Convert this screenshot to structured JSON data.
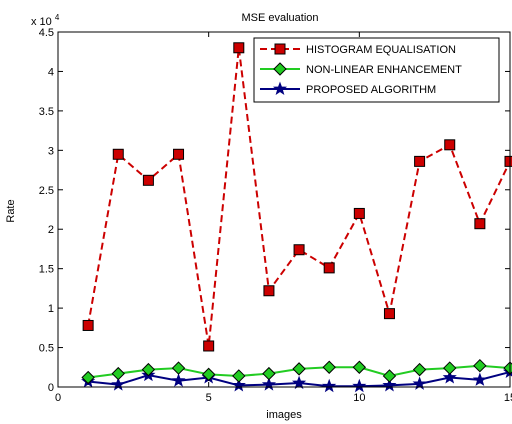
{
  "chart_data": {
    "type": "line",
    "title": "MSE evaluation",
    "xlabel": "images",
    "ylabel": "Rate",
    "y_multiplier_label": "x 10",
    "y_multiplier_exp": "4",
    "xlim": [
      0,
      15
    ],
    "ylim": [
      0,
      45000
    ],
    "x_ticks": [
      0,
      5,
      10,
      15
    ],
    "x_tick_labels": [
      "0",
      "5",
      "10",
      "15"
    ],
    "y_ticks": [
      0,
      5000,
      10000,
      15000,
      20000,
      25000,
      30000,
      35000,
      40000,
      45000
    ],
    "y_tick_labels": [
      "0",
      "0.5",
      "1",
      "1.5",
      "2",
      "2.5",
      "3",
      "3.5",
      "4",
      "4.5"
    ],
    "grid": false,
    "legend_position": "top-right",
    "x": [
      1,
      2,
      3,
      4,
      5,
      6,
      7,
      8,
      9,
      10,
      11,
      12,
      13,
      14,
      15
    ],
    "series": [
      {
        "name": "HISTOGRAM EQUALISATION",
        "color": "#cc0000",
        "marker": "square",
        "line_style": "dashed",
        "values": [
          7800,
          29500,
          26200,
          29500,
          5200,
          43000,
          12200,
          17400,
          15100,
          22000,
          9300,
          28600,
          30700,
          20700,
          28600
        ]
      },
      {
        "name": "NON-LINEAR ENHANCEMENT",
        "color": "#22cc22",
        "marker": "diamond",
        "line_style": "solid",
        "values": [
          1200,
          1700,
          2200,
          2400,
          1600,
          1400,
          1700,
          2300,
          2500,
          2500,
          1400,
          2200,
          2400,
          2700,
          2400
        ]
      },
      {
        "name": "PROPOSED ALGORITHM",
        "color": "#000080",
        "marker": "star",
        "line_style": "solid",
        "values": [
          700,
          300,
          1500,
          800,
          1200,
          200,
          300,
          500,
          100,
          100,
          200,
          400,
          1200,
          900,
          1900
        ]
      }
    ]
  }
}
